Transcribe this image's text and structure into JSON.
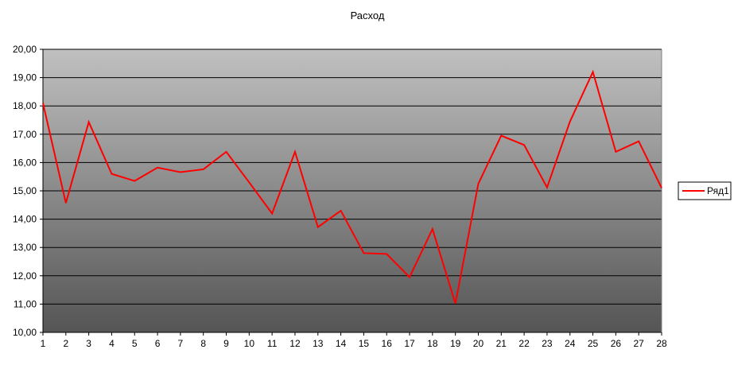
{
  "chart_data": {
    "type": "line",
    "title": "Расход",
    "xlabel": "",
    "ylabel": "",
    "categories": [
      "1",
      "2",
      "3",
      "4",
      "5",
      "6",
      "7",
      "8",
      "9",
      "10",
      "11",
      "12",
      "13",
      "14",
      "15",
      "16",
      "17",
      "18",
      "19",
      "20",
      "21",
      "22",
      "23",
      "24",
      "25",
      "26",
      "27",
      "28"
    ],
    "y_tick_labels": [
      "10,00",
      "11,00",
      "12,00",
      "13,00",
      "14,00",
      "15,00",
      "16,00",
      "17,00",
      "18,00",
      "19,00",
      "20,00"
    ],
    "ylim": [
      10,
      20
    ],
    "grid": true,
    "legend_position": "right",
    "series": [
      {
        "name": "Ряд1",
        "color": "#ff0000",
        "values": [
          18.1,
          14.57,
          17.43,
          15.6,
          15.35,
          15.82,
          15.66,
          15.76,
          16.38,
          15.3,
          14.2,
          16.38,
          13.72,
          14.3,
          12.8,
          12.77,
          11.95,
          13.65,
          11.02,
          15.25,
          16.95,
          16.62,
          15.12,
          17.45,
          19.2,
          16.38,
          16.75,
          15.1
        ]
      }
    ],
    "plot_background": {
      "gradient_top": "#c0c0c0",
      "gradient_bottom": "#555555"
    }
  }
}
